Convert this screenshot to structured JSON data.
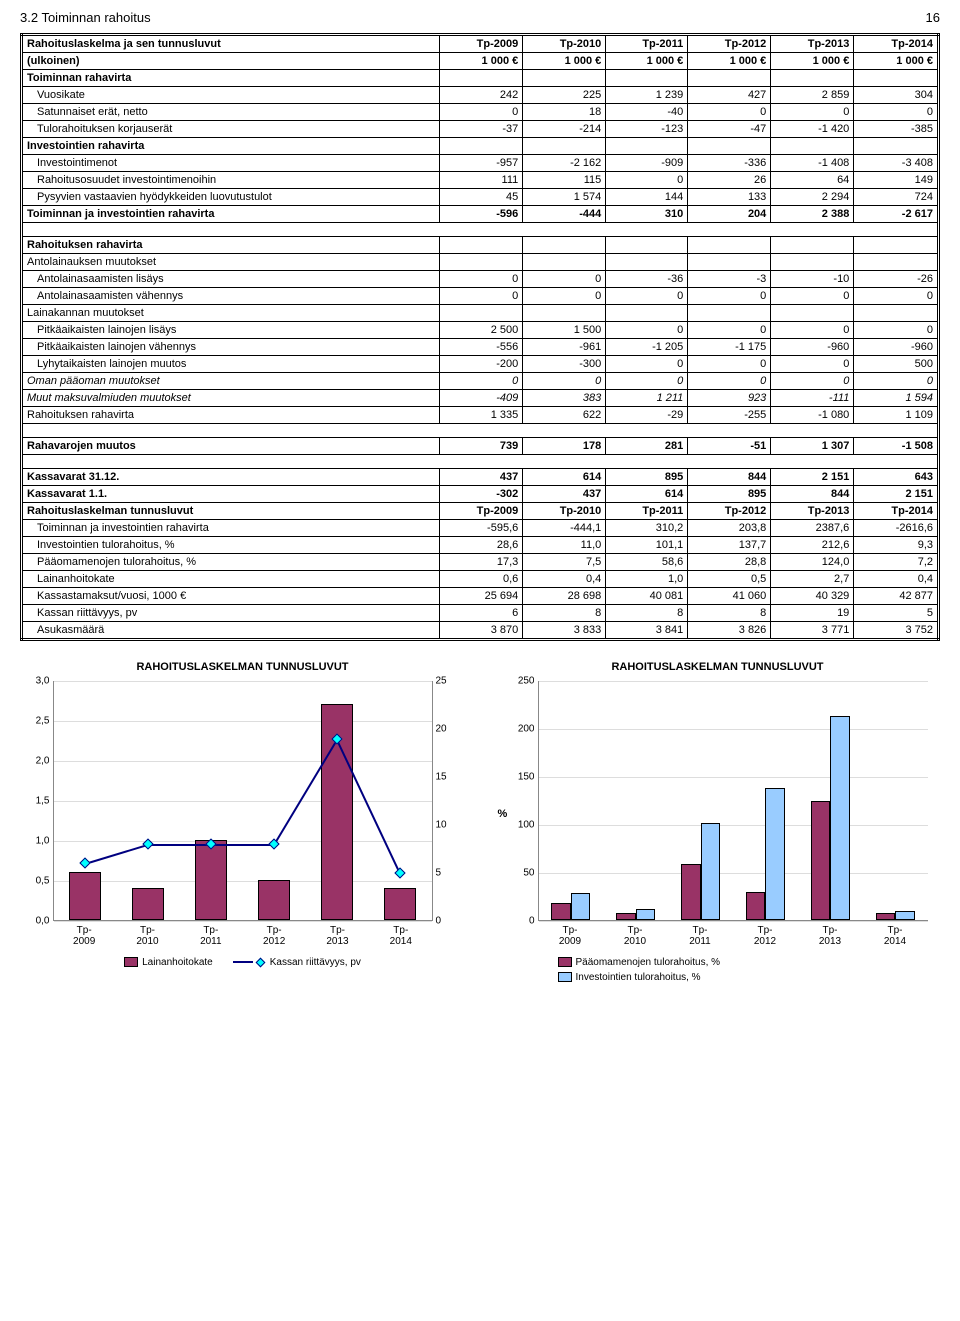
{
  "page": {
    "section": "3.2 Toiminnan rahoitus",
    "number": "16"
  },
  "table": {
    "headers1": [
      "Rahoituslaskelma ja sen tunnusluvut",
      "Tp-2009",
      "Tp-2010",
      "Tp-2011",
      "Tp-2012",
      "Tp-2013",
      "Tp-2014"
    ],
    "headers2": [
      "(ulkoinen)",
      "1 000 €",
      "1 000 €",
      "1 000 €",
      "1 000 €",
      "1 000 €",
      "1 000 €"
    ],
    "rows": [
      {
        "cells": [
          "Toiminnan rahavirta",
          "",
          "",
          "",
          "",
          "",
          ""
        ],
        "bold": true
      },
      {
        "cells": [
          "Vuosikate",
          "242",
          "225",
          "1 239",
          "427",
          "2 859",
          "304"
        ],
        "indent": true
      },
      {
        "cells": [
          "Satunnaiset erät, netto",
          "0",
          "18",
          "-40",
          "0",
          "0",
          "0"
        ],
        "indent": true
      },
      {
        "cells": [
          "Tulorahoituksen korjauserät",
          "-37",
          "-214",
          "-123",
          "-47",
          "-1 420",
          "-385"
        ],
        "indent": true
      },
      {
        "cells": [
          "Investointien rahavirta",
          "",
          "",
          "",
          "",
          "",
          ""
        ],
        "bold": true
      },
      {
        "cells": [
          "Investointimenot",
          "-957",
          "-2 162",
          "-909",
          "-336",
          "-1 408",
          "-3 408"
        ],
        "indent": true
      },
      {
        "cells": [
          "Rahoitusosuudet investointimenoihin",
          "111",
          "115",
          "0",
          "26",
          "64",
          "149"
        ],
        "indent": true
      },
      {
        "cells": [
          "Pysyvien vastaavien hyödykkeiden luovutustulot",
          "45",
          "1 574",
          "144",
          "133",
          "2 294",
          "724"
        ],
        "indent": true
      },
      {
        "cells": [
          "Toiminnan ja investointien rahavirta",
          "-596",
          "-444",
          "310",
          "204",
          "2 388",
          "-2 617"
        ],
        "bold": true
      },
      {
        "gap": true
      },
      {
        "cells": [
          "Rahoituksen rahavirta",
          "",
          "",
          "",
          "",
          "",
          ""
        ],
        "bold": true
      },
      {
        "cells": [
          "Antolainauksen muutokset",
          "",
          "",
          "",
          "",
          "",
          ""
        ]
      },
      {
        "cells": [
          "Antolainasaamisten lisäys",
          "0",
          "0",
          "-36",
          "-3",
          "-10",
          "-26"
        ],
        "indent": true
      },
      {
        "cells": [
          "Antolainasaamisten vähennys",
          "0",
          "0",
          "0",
          "0",
          "0",
          "0"
        ],
        "indent": true
      },
      {
        "cells": [
          "Lainakannan muutokset",
          "",
          "",
          "",
          "",
          "",
          ""
        ]
      },
      {
        "cells": [
          "Pitkäaikaisten lainojen lisäys",
          "2 500",
          "1 500",
          "0",
          "0",
          "0",
          "0"
        ],
        "indent": true
      },
      {
        "cells": [
          "Pitkäaikaisten lainojen vähennys",
          "-556",
          "-961",
          "-1 205",
          "-1 175",
          "-960",
          "-960"
        ],
        "indent": true
      },
      {
        "cells": [
          "Lyhytaikaisten lainojen muutos",
          "-200",
          "-300",
          "0",
          "0",
          "0",
          "500"
        ],
        "indent": true
      },
      {
        "cells": [
          "Oman pääoman muutokset",
          "0",
          "0",
          "0",
          "0",
          "0",
          "0"
        ],
        "italic": true
      },
      {
        "cells": [
          "Muut maksuvalmiuden muutokset",
          "-409",
          "383",
          "1 211",
          "923",
          "-111",
          "1 594"
        ],
        "italic": true
      },
      {
        "cells": [
          "Rahoituksen rahavirta",
          "1 335",
          "622",
          "-29",
          "-255",
          "-1 080",
          "1 109"
        ]
      },
      {
        "gap": true
      },
      {
        "cells": [
          "Rahavarojen muutos",
          "739",
          "178",
          "281",
          "-51",
          "1 307",
          "-1 508"
        ],
        "bold": true
      },
      {
        "gap": true
      },
      {
        "cells": [
          "Kassavarat 31.12.",
          "437",
          "614",
          "895",
          "844",
          "2 151",
          "643"
        ],
        "bold": true
      },
      {
        "cells": [
          "Kassavarat 1.1.",
          "-302",
          "437",
          "614",
          "895",
          "844",
          "2 151"
        ],
        "bold": true
      },
      {
        "cells": [
          "Rahoituslaskelman tunnusluvut",
          "Tp-2009",
          "Tp-2010",
          "Tp-2011",
          "Tp-2012",
          "Tp-2013",
          "Tp-2014"
        ],
        "bold": true
      },
      {
        "cells": [
          "Toiminnan ja investointien rahavirta",
          "-595,6",
          "-444,1",
          "310,2",
          "203,8",
          "2387,6",
          "-2616,6"
        ],
        "indent": true
      },
      {
        "cells": [
          "Investointien tulorahoitus, %",
          "28,6",
          "11,0",
          "101,1",
          "137,7",
          "212,6",
          "9,3"
        ],
        "indent": true
      },
      {
        "cells": [
          "Pääomamenojen tulorahoitus, %",
          "17,3",
          "7,5",
          "58,6",
          "28,8",
          "124,0",
          "7,2"
        ],
        "indent": true
      },
      {
        "cells": [
          "Lainanhoitokate",
          "0,6",
          "0,4",
          "1,0",
          "0,5",
          "2,7",
          "0,4"
        ],
        "indent": true
      },
      {
        "cells": [
          "Kassastamaksut/vuosi, 1000 €",
          "25 694",
          "28 698",
          "40 081",
          "41 060",
          "40 329",
          "42 877"
        ],
        "indent": true
      },
      {
        "cells": [
          "Kassan riittävyys, pv",
          "6",
          "8",
          "8",
          "8",
          "19",
          "5"
        ],
        "indent": true
      },
      {
        "cells": [
          "Asukasmäärä",
          "3 870",
          "3 833",
          "3 841",
          "3 826",
          "3 771",
          "3 752"
        ],
        "indent": true
      }
    ]
  },
  "chart1": {
    "title": "RAHOITUSLASKELMAN TUNNUSLUVUT",
    "categories": [
      "Tp-2009",
      "Tp-2010",
      "Tp-2011",
      "Tp-2012",
      "Tp-2013",
      "Tp-2014"
    ],
    "bar_values": [
      0.6,
      0.4,
      1.0,
      0.5,
      2.7,
      0.4
    ],
    "bar_color": "#993366",
    "line_values": [
      6,
      8,
      8,
      8,
      19,
      5
    ],
    "line_color": "#000080",
    "marker_fill": "#00ffff",
    "y1_max": 3.0,
    "y1_step": 0.5,
    "y2_max": 25,
    "y2_step": 5,
    "y1_labels": [
      "0,0",
      "0,5",
      "1,0",
      "1,5",
      "2,0",
      "2,5",
      "3,0"
    ],
    "y2_labels": [
      "0",
      "5",
      "10",
      "15",
      "20",
      "25"
    ],
    "legend": [
      "Lainanhoitokate",
      "Kassan riittävyys, pv"
    ]
  },
  "chart2": {
    "title": "RAHOITUSLASKELMAN TUNNUSLUVUT",
    "categories": [
      "Tp-2009",
      "Tp-2010",
      "Tp-2011",
      "Tp-2012",
      "Tp-2013",
      "Tp-2014"
    ],
    "series": [
      {
        "name": "Pääomamenojen tulorahoitus, %",
        "color": "#993366",
        "values": [
          17.3,
          7.5,
          58.6,
          28.8,
          124.0,
          7.2
        ]
      },
      {
        "name": "Investointien tulorahoitus, %",
        "color": "#99ccff",
        "values": [
          28.6,
          11.0,
          101.1,
          137.7,
          212.6,
          9.3
        ]
      }
    ],
    "y_max": 250,
    "y_step": 50,
    "y_labels": [
      "0",
      "50",
      "100",
      "150",
      "200",
      "250"
    ],
    "y_title": "%"
  }
}
